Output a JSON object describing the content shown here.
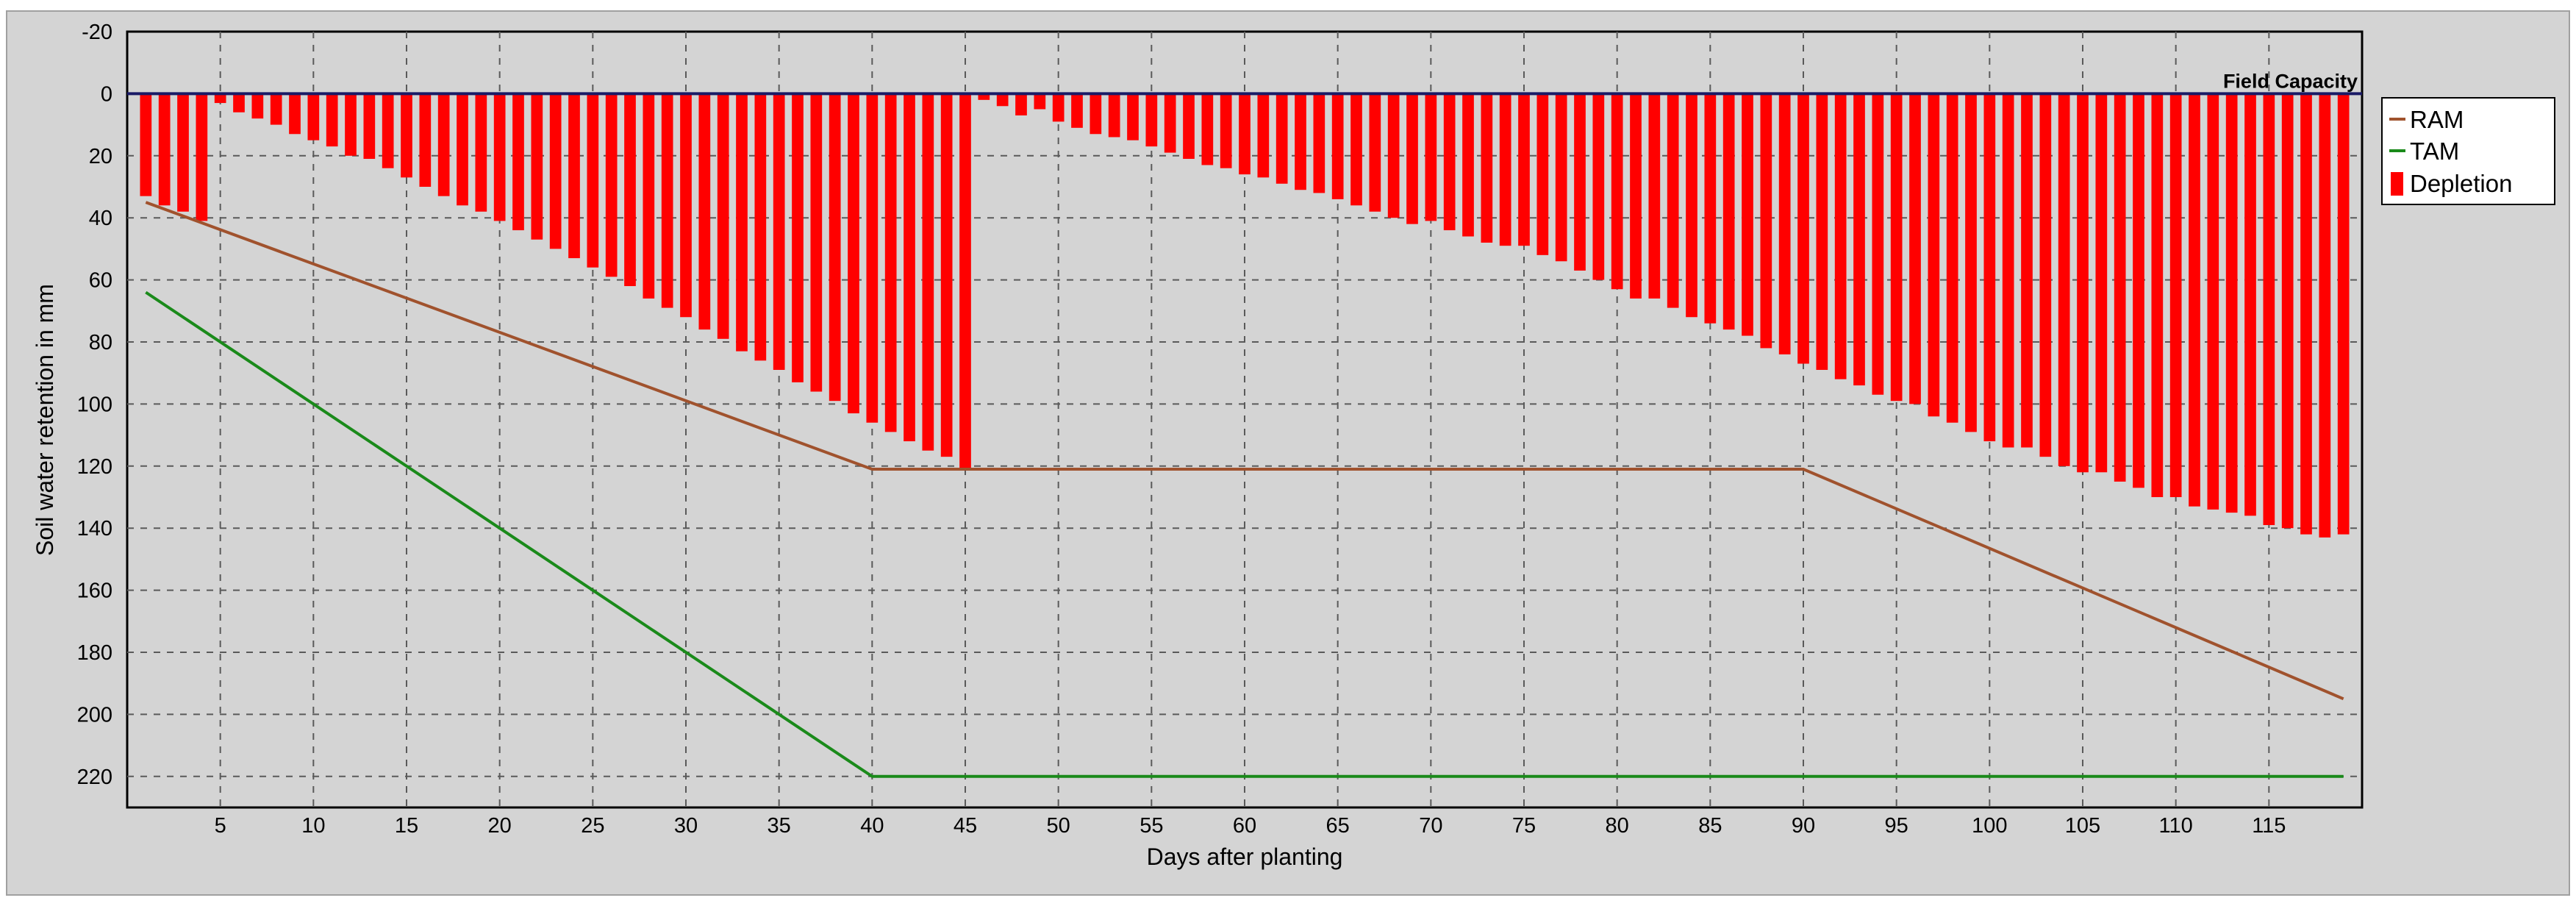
{
  "chart_data": {
    "type": "bar+line",
    "title": "",
    "xlabel": "Days after planting",
    "ylabel": "Soil water retention in mm",
    "xlim": [
      0,
      120
    ],
    "ylim": [
      -20,
      230
    ],
    "y_inverted": true,
    "grid": true,
    "x_ticks": [
      5,
      10,
      15,
      20,
      25,
      30,
      35,
      40,
      45,
      50,
      55,
      60,
      65,
      70,
      75,
      80,
      85,
      90,
      95,
      100,
      105,
      110,
      115
    ],
    "y_ticks": [
      -20,
      0,
      20,
      40,
      60,
      80,
      100,
      120,
      140,
      160,
      180,
      200,
      220
    ],
    "annotations": [
      {
        "text": "Field Capacity",
        "y": 0
      }
    ],
    "legend": {
      "position": "right",
      "entries": [
        "RAM",
        "TAM",
        "Depletion"
      ]
    },
    "colors": {
      "RAM": "#a0522d",
      "TAM": "#1a8a1a",
      "Depletion": "#ff0000",
      "field_capacity_line": "#1a1a66"
    },
    "series": [
      {
        "name": "Depletion",
        "type": "bar",
        "x": [
          1,
          2,
          3,
          4,
          5,
          6,
          7,
          8,
          9,
          10,
          11,
          12,
          13,
          14,
          15,
          16,
          17,
          18,
          19,
          20,
          21,
          22,
          23,
          24,
          25,
          26,
          27,
          28,
          29,
          30,
          31,
          32,
          33,
          34,
          35,
          36,
          37,
          38,
          39,
          40,
          41,
          42,
          43,
          44,
          45,
          46,
          47,
          48,
          49,
          50,
          51,
          52,
          53,
          54,
          55,
          56,
          57,
          58,
          59,
          60,
          61,
          62,
          63,
          64,
          65,
          66,
          67,
          68,
          69,
          70,
          71,
          72,
          73,
          74,
          75,
          76,
          77,
          78,
          79,
          80,
          81,
          82,
          83,
          84,
          85,
          86,
          87,
          88,
          89,
          90,
          91,
          92,
          93,
          94,
          95,
          96,
          97,
          98,
          99,
          100,
          101,
          102,
          103,
          104,
          105,
          106,
          107,
          108,
          109,
          110,
          111,
          112,
          113,
          114,
          115,
          116,
          117,
          118,
          119
        ],
        "values": [
          33,
          36,
          38,
          41,
          3,
          6,
          8,
          10,
          13,
          15,
          17,
          20,
          21,
          24,
          27,
          30,
          33,
          36,
          38,
          41,
          44,
          47,
          50,
          53,
          56,
          59,
          62,
          66,
          69,
          72,
          76,
          79,
          83,
          86,
          89,
          93,
          96,
          99,
          103,
          106,
          109,
          112,
          115,
          117,
          121,
          2,
          4,
          7,
          5,
          9,
          11,
          13,
          14,
          15,
          17,
          19,
          21,
          23,
          24,
          26,
          27,
          29,
          31,
          32,
          34,
          36,
          38,
          40,
          42,
          41,
          44,
          46,
          48,
          49,
          49,
          52,
          54,
          57,
          60,
          63,
          66,
          66,
          69,
          72,
          74,
          76,
          78,
          82,
          84,
          87,
          89,
          92,
          94,
          97,
          99,
          100,
          104,
          106,
          109,
          112,
          114,
          114,
          117,
          120,
          122,
          122,
          125,
          127,
          130,
          130,
          133,
          134,
          135,
          136,
          139,
          140,
          142,
          143,
          142
        ]
      },
      {
        "name": "RAM",
        "type": "line",
        "x": [
          1,
          40,
          90,
          119
        ],
        "values": [
          35,
          121,
          121,
          195
        ]
      },
      {
        "name": "TAM",
        "type": "line",
        "x": [
          1,
          40,
          119
        ],
        "values": [
          64,
          220,
          220
        ]
      }
    ]
  }
}
